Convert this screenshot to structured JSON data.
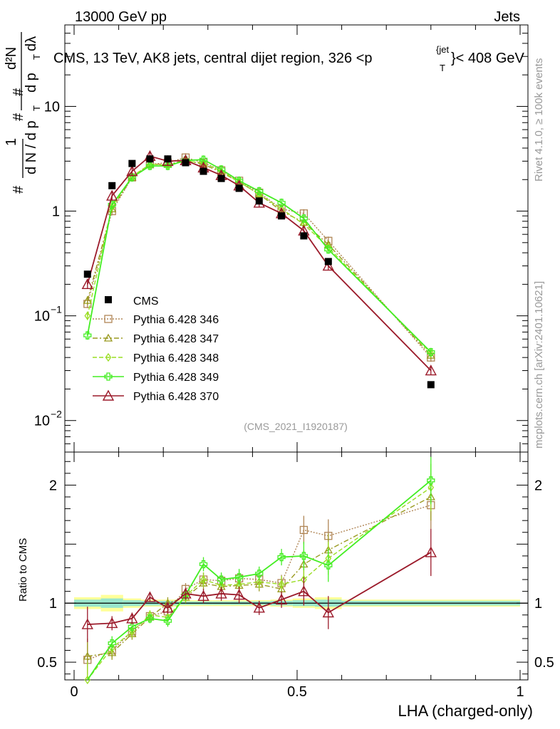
{
  "header": {
    "left": "13000 GeV pp",
    "right": "Jets"
  },
  "side_text": {
    "rivet": "Rivet 4.1.0, ≥ 100k events",
    "mcplots": "mcplots.cern.ch [arXiv:2401.10621]"
  },
  "watermark": "(CMS_2021_I1920187)",
  "chart_data": {
    "type": "line",
    "title": "CMS, 13 TeV, AK8 jets, central dijet region, 326 <p_T^{jet}< 408 GeV",
    "title_parts": {
      "main": "CMS, 13 TeV, AK8 jets, central dijet region, 326 <p",
      "sub": "T",
      "sup": "{jet",
      "end": "}< 408 GeV"
    },
    "xlabel": "LHA (charged-only)",
    "ylabel": "1/dN/dp_T d²N/dp_T dλ",
    "ylabel_parts": {
      "one": "1",
      "hash": "#",
      "dN": "d N / d p",
      "T": "T",
      "d2N": "d²N",
      "dpT": "d p",
      "dl": "dλ"
    },
    "ratio_ylabel": "Ratio to CMS",
    "xlim": [
      0,
      1
    ],
    "ylim_main": [
      0.005,
      60
    ],
    "ylim_ratio": [
      0.35,
      2.28
    ],
    "x_ticks": [
      {
        "v": 0,
        "label": "0"
      },
      {
        "v": 0.5,
        "label": "0.5"
      },
      {
        "v": 1,
        "label": "1"
      }
    ],
    "y_ticks_main": [
      {
        "v": 0.01,
        "base": "10",
        "exp": "−2"
      },
      {
        "v": 0.1,
        "base": "10",
        "exp": "−1"
      },
      {
        "v": 1,
        "base": "1",
        "exp": ""
      },
      {
        "v": 10,
        "base": "10",
        "exp": ""
      }
    ],
    "y_ticks_ratio": [
      {
        "v": 0.5,
        "label": "0.5"
      },
      {
        "v": 1,
        "label": "1"
      },
      {
        "v": 2,
        "label": "2"
      }
    ],
    "x": [
      0.03,
      0.085,
      0.13,
      0.17,
      0.21,
      0.25,
      0.29,
      0.33,
      0.37,
      0.415,
      0.465,
      0.515,
      0.57,
      0.8
    ],
    "cms": [
      0.25,
      1.75,
      2.85,
      3.15,
      3.15,
      2.9,
      2.4,
      2.05,
      1.65,
      1.25,
      0.9,
      0.58,
      0.33,
      0.022
    ],
    "band_edges": [
      0,
      0.06,
      0.11,
      0.15,
      0.19,
      0.23,
      0.27,
      0.31,
      0.35,
      0.39,
      0.44,
      0.49,
      0.54,
      0.6,
      1.0
    ],
    "band_inner": [
      0.03,
      0.04,
      0.025,
      0.02,
      0.02,
      0.015,
      0.015,
      0.015,
      0.015,
      0.015,
      0.02,
      0.025,
      0.03,
      0.02
    ],
    "band_outer": [
      0.05,
      0.07,
      0.04,
      0.03,
      0.03,
      0.025,
      0.025,
      0.025,
      0.025,
      0.025,
      0.03,
      0.04,
      0.05,
      0.03
    ],
    "series": [
      {
        "name": "Pythia 6.428 346",
        "color": "#b08656",
        "dash": "2,2",
        "marker": "square",
        "values": [
          0.13,
          1.0,
          2.1,
          2.8,
          2.9,
          3.25,
          2.9,
          2.45,
          1.95,
          1.5,
          1.05,
          0.95,
          0.52,
          0.04
        ],
        "ratio": [
          0.52,
          0.6,
          0.76,
          0.89,
          0.93,
          1.12,
          1.2,
          1.19,
          1.21,
          1.2,
          1.17,
          1.62,
          1.57,
          1.83
        ],
        "err": [
          0.15,
          0.06,
          0.05,
          0.04,
          0.05,
          0.05,
          0.06,
          0.06,
          0.07,
          0.06,
          0.07,
          0.12,
          0.14,
          0.2
        ]
      },
      {
        "name": "Pythia 6.428 347",
        "color": "#9a9a20",
        "dash": "7,3,2,3",
        "marker": "triangle",
        "values": [
          0.14,
          1.05,
          2.1,
          2.8,
          2.8,
          3.05,
          2.8,
          2.35,
          1.9,
          1.45,
          1.0,
          0.78,
          0.48,
          0.042
        ],
        "ratio": [
          0.55,
          0.58,
          0.74,
          0.88,
          1.0,
          1.05,
          1.17,
          1.14,
          1.15,
          1.16,
          1.12,
          1.33,
          1.45,
          1.9
        ],
        "err": [
          0.15,
          0.06,
          0.05,
          0.04,
          0.05,
          0.05,
          0.06,
          0.06,
          0.07,
          0.06,
          0.07,
          0.12,
          0.14,
          0.2
        ]
      },
      {
        "name": "Pythia 6.428 348",
        "color": "#99dd22",
        "dash": "6,3",
        "marker": "diamond",
        "values": [
          0.1,
          1.1,
          2.15,
          2.8,
          2.75,
          3.0,
          2.9,
          2.4,
          1.9,
          1.45,
          1.05,
          0.75,
          0.45,
          0.044
        ],
        "ratio": [
          0.35,
          0.62,
          0.76,
          0.9,
          0.88,
          1.06,
          1.2,
          1.15,
          1.16,
          1.18,
          1.16,
          1.2,
          1.38,
          1.98
        ],
        "err": [
          0.15,
          0.06,
          0.05,
          0.04,
          0.05,
          0.05,
          0.06,
          0.06,
          0.07,
          0.06,
          0.07,
          0.12,
          0.14,
          0.2
        ]
      },
      {
        "name": "Pythia 6.428 349",
        "color": "#44ee22",
        "dash": "",
        "marker": "cross",
        "values": [
          0.065,
          1.15,
          2.1,
          2.7,
          2.7,
          3.05,
          3.1,
          2.5,
          1.95,
          1.55,
          1.2,
          0.85,
          0.43,
          0.045
        ],
        "ratio": [
          0.26,
          0.66,
          0.8,
          0.87,
          0.85,
          1.07,
          1.33,
          1.2,
          1.22,
          1.25,
          1.39,
          1.4,
          1.32,
          2.04
        ],
        "err": [
          0.15,
          0.06,
          0.05,
          0.04,
          0.05,
          0.05,
          0.06,
          0.06,
          0.07,
          0.06,
          0.07,
          0.12,
          0.14,
          0.2
        ]
      },
      {
        "name": "Pythia 6.428 370",
        "color": "#9b1a2a",
        "dash": "",
        "marker": "open-triangle",
        "values": [
          0.2,
          1.4,
          2.4,
          3.35,
          3.0,
          3.05,
          2.6,
          2.2,
          1.75,
          1.2,
          0.95,
          0.65,
          0.3,
          0.03
        ],
        "ratio": [
          0.82,
          0.83,
          0.87,
          1.05,
          0.96,
          1.08,
          1.06,
          1.08,
          1.07,
          0.96,
          1.03,
          1.1,
          0.92,
          1.43
        ],
        "err": [
          0.15,
          0.06,
          0.05,
          0.04,
          0.05,
          0.05,
          0.06,
          0.06,
          0.07,
          0.06,
          0.07,
          0.12,
          0.14,
          0.2
        ]
      }
    ],
    "legend": {
      "placement": "lower-left",
      "cms_label": "CMS"
    }
  }
}
